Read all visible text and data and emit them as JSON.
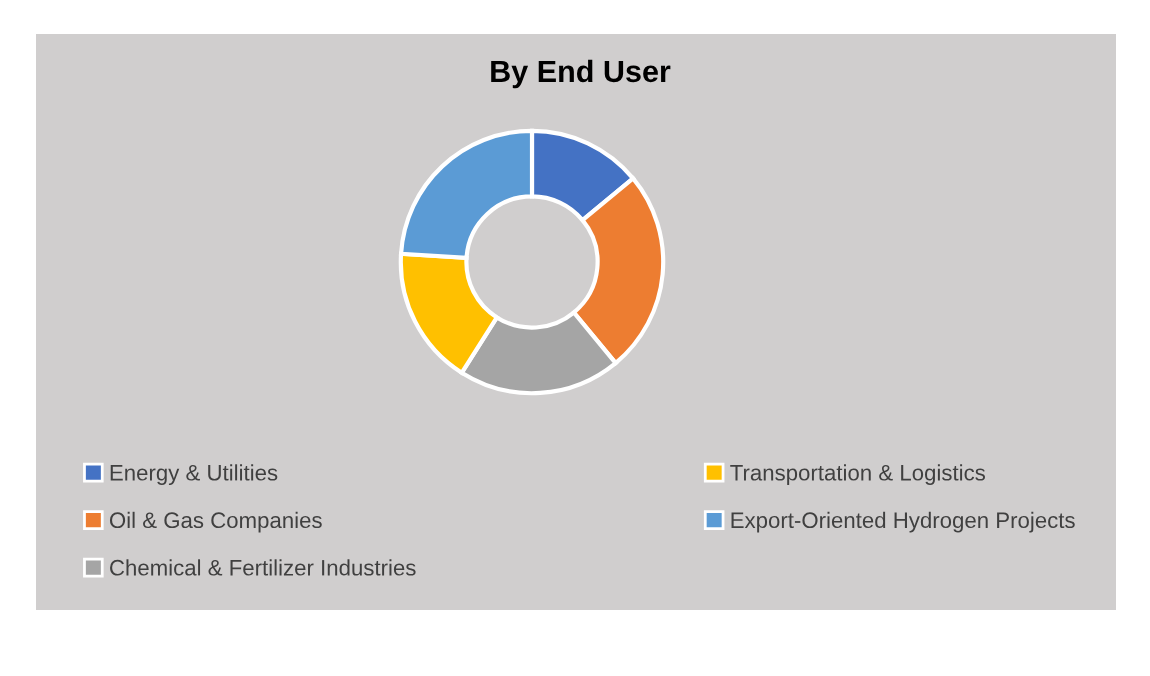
{
  "chart_data": {
    "type": "donut",
    "title": "By End User",
    "categories": [
      "Energy & Utilities",
      "Oil & Gas Companies",
      "Chemical & Fertilizer Industries",
      "Transportation & Logistics",
      "Export-Oriented Hydrogen Projects"
    ],
    "values": [
      14,
      25,
      20,
      17,
      24
    ],
    "colors": [
      "#4472c4",
      "#ed7d31",
      "#a5a5a5",
      "#ffc000",
      "#5b9bd5"
    ],
    "legend": "bottom"
  }
}
